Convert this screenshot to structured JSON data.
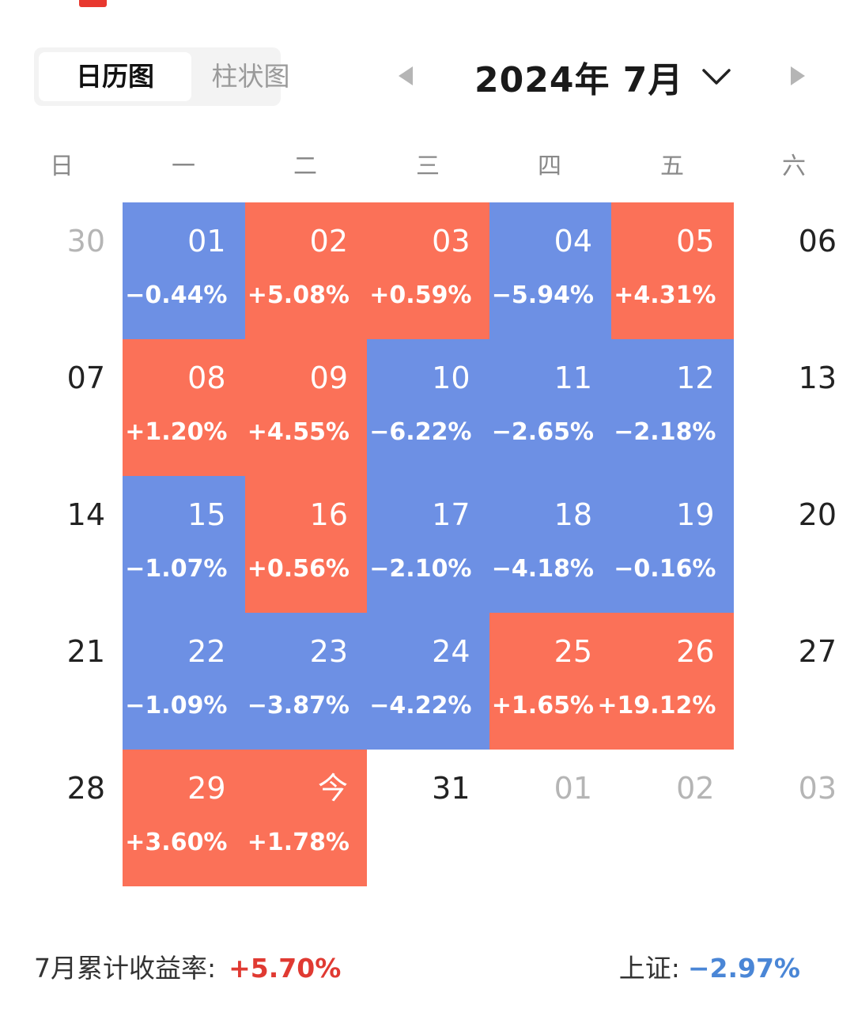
{
  "view_toggle": {
    "options": [
      "日历图",
      "柱状图"
    ],
    "selected": "日历图"
  },
  "month_nav": {
    "title": "2024年 7月",
    "prev_icon": "triangle-left-icon",
    "next_icon": "triangle-right-icon",
    "dropdown_icon": "chevron-down-icon"
  },
  "weekdays": [
    "日",
    "一",
    "二",
    "三",
    "四",
    "五",
    "六"
  ],
  "colors": {
    "gain": "#fb7158",
    "loss": "#6d90e4",
    "gain_text": "#e03a32",
    "loss_text": "#4a86d6"
  },
  "weeks": [
    [
      {
        "day": "30",
        "type": "other"
      },
      {
        "day": "01",
        "pct": "−0.44%",
        "type": "down"
      },
      {
        "day": "02",
        "pct": "+5.08%",
        "type": "up"
      },
      {
        "day": "03",
        "pct": "+0.59%",
        "type": "up"
      },
      {
        "day": "04",
        "pct": "−5.94%",
        "type": "down"
      },
      {
        "day": "05",
        "pct": "+4.31%",
        "type": "up"
      },
      {
        "day": "06",
        "type": "plain"
      }
    ],
    [
      {
        "day": "07",
        "type": "plain"
      },
      {
        "day": "08",
        "pct": "+1.20%",
        "type": "up"
      },
      {
        "day": "09",
        "pct": "+4.55%",
        "type": "up"
      },
      {
        "day": "10",
        "pct": "−6.22%",
        "type": "down"
      },
      {
        "day": "11",
        "pct": "−2.65%",
        "type": "down"
      },
      {
        "day": "12",
        "pct": "−2.18%",
        "type": "down"
      },
      {
        "day": "13",
        "type": "plain"
      }
    ],
    [
      {
        "day": "14",
        "type": "plain"
      },
      {
        "day": "15",
        "pct": "−1.07%",
        "type": "down"
      },
      {
        "day": "16",
        "pct": "+0.56%",
        "type": "up"
      },
      {
        "day": "17",
        "pct": "−2.10%",
        "type": "down"
      },
      {
        "day": "18",
        "pct": "−4.18%",
        "type": "down"
      },
      {
        "day": "19",
        "pct": "−0.16%",
        "type": "down"
      },
      {
        "day": "20",
        "type": "plain"
      }
    ],
    [
      {
        "day": "21",
        "type": "plain"
      },
      {
        "day": "22",
        "pct": "−1.09%",
        "type": "down"
      },
      {
        "day": "23",
        "pct": "−3.87%",
        "type": "down"
      },
      {
        "day": "24",
        "pct": "−4.22%",
        "type": "down"
      },
      {
        "day": "25",
        "pct": "+1.65%",
        "type": "up"
      },
      {
        "day": "26",
        "pct": "+19.12%",
        "type": "up"
      },
      {
        "day": "27",
        "type": "plain"
      }
    ],
    [
      {
        "day": "28",
        "type": "plain"
      },
      {
        "day": "29",
        "pct": "+3.60%",
        "type": "up"
      },
      {
        "day": "今",
        "pct": "+1.78%",
        "type": "up"
      },
      {
        "day": "31",
        "type": "plain"
      },
      {
        "day": "01",
        "type": "other"
      },
      {
        "day": "02",
        "type": "other"
      },
      {
        "day": "03",
        "type": "other"
      }
    ]
  ],
  "summary": {
    "cumulative_label": "7月累计收益率:",
    "cumulative_value": "+5.70%",
    "index_label": "上证:",
    "index_value": "−2.97%"
  }
}
